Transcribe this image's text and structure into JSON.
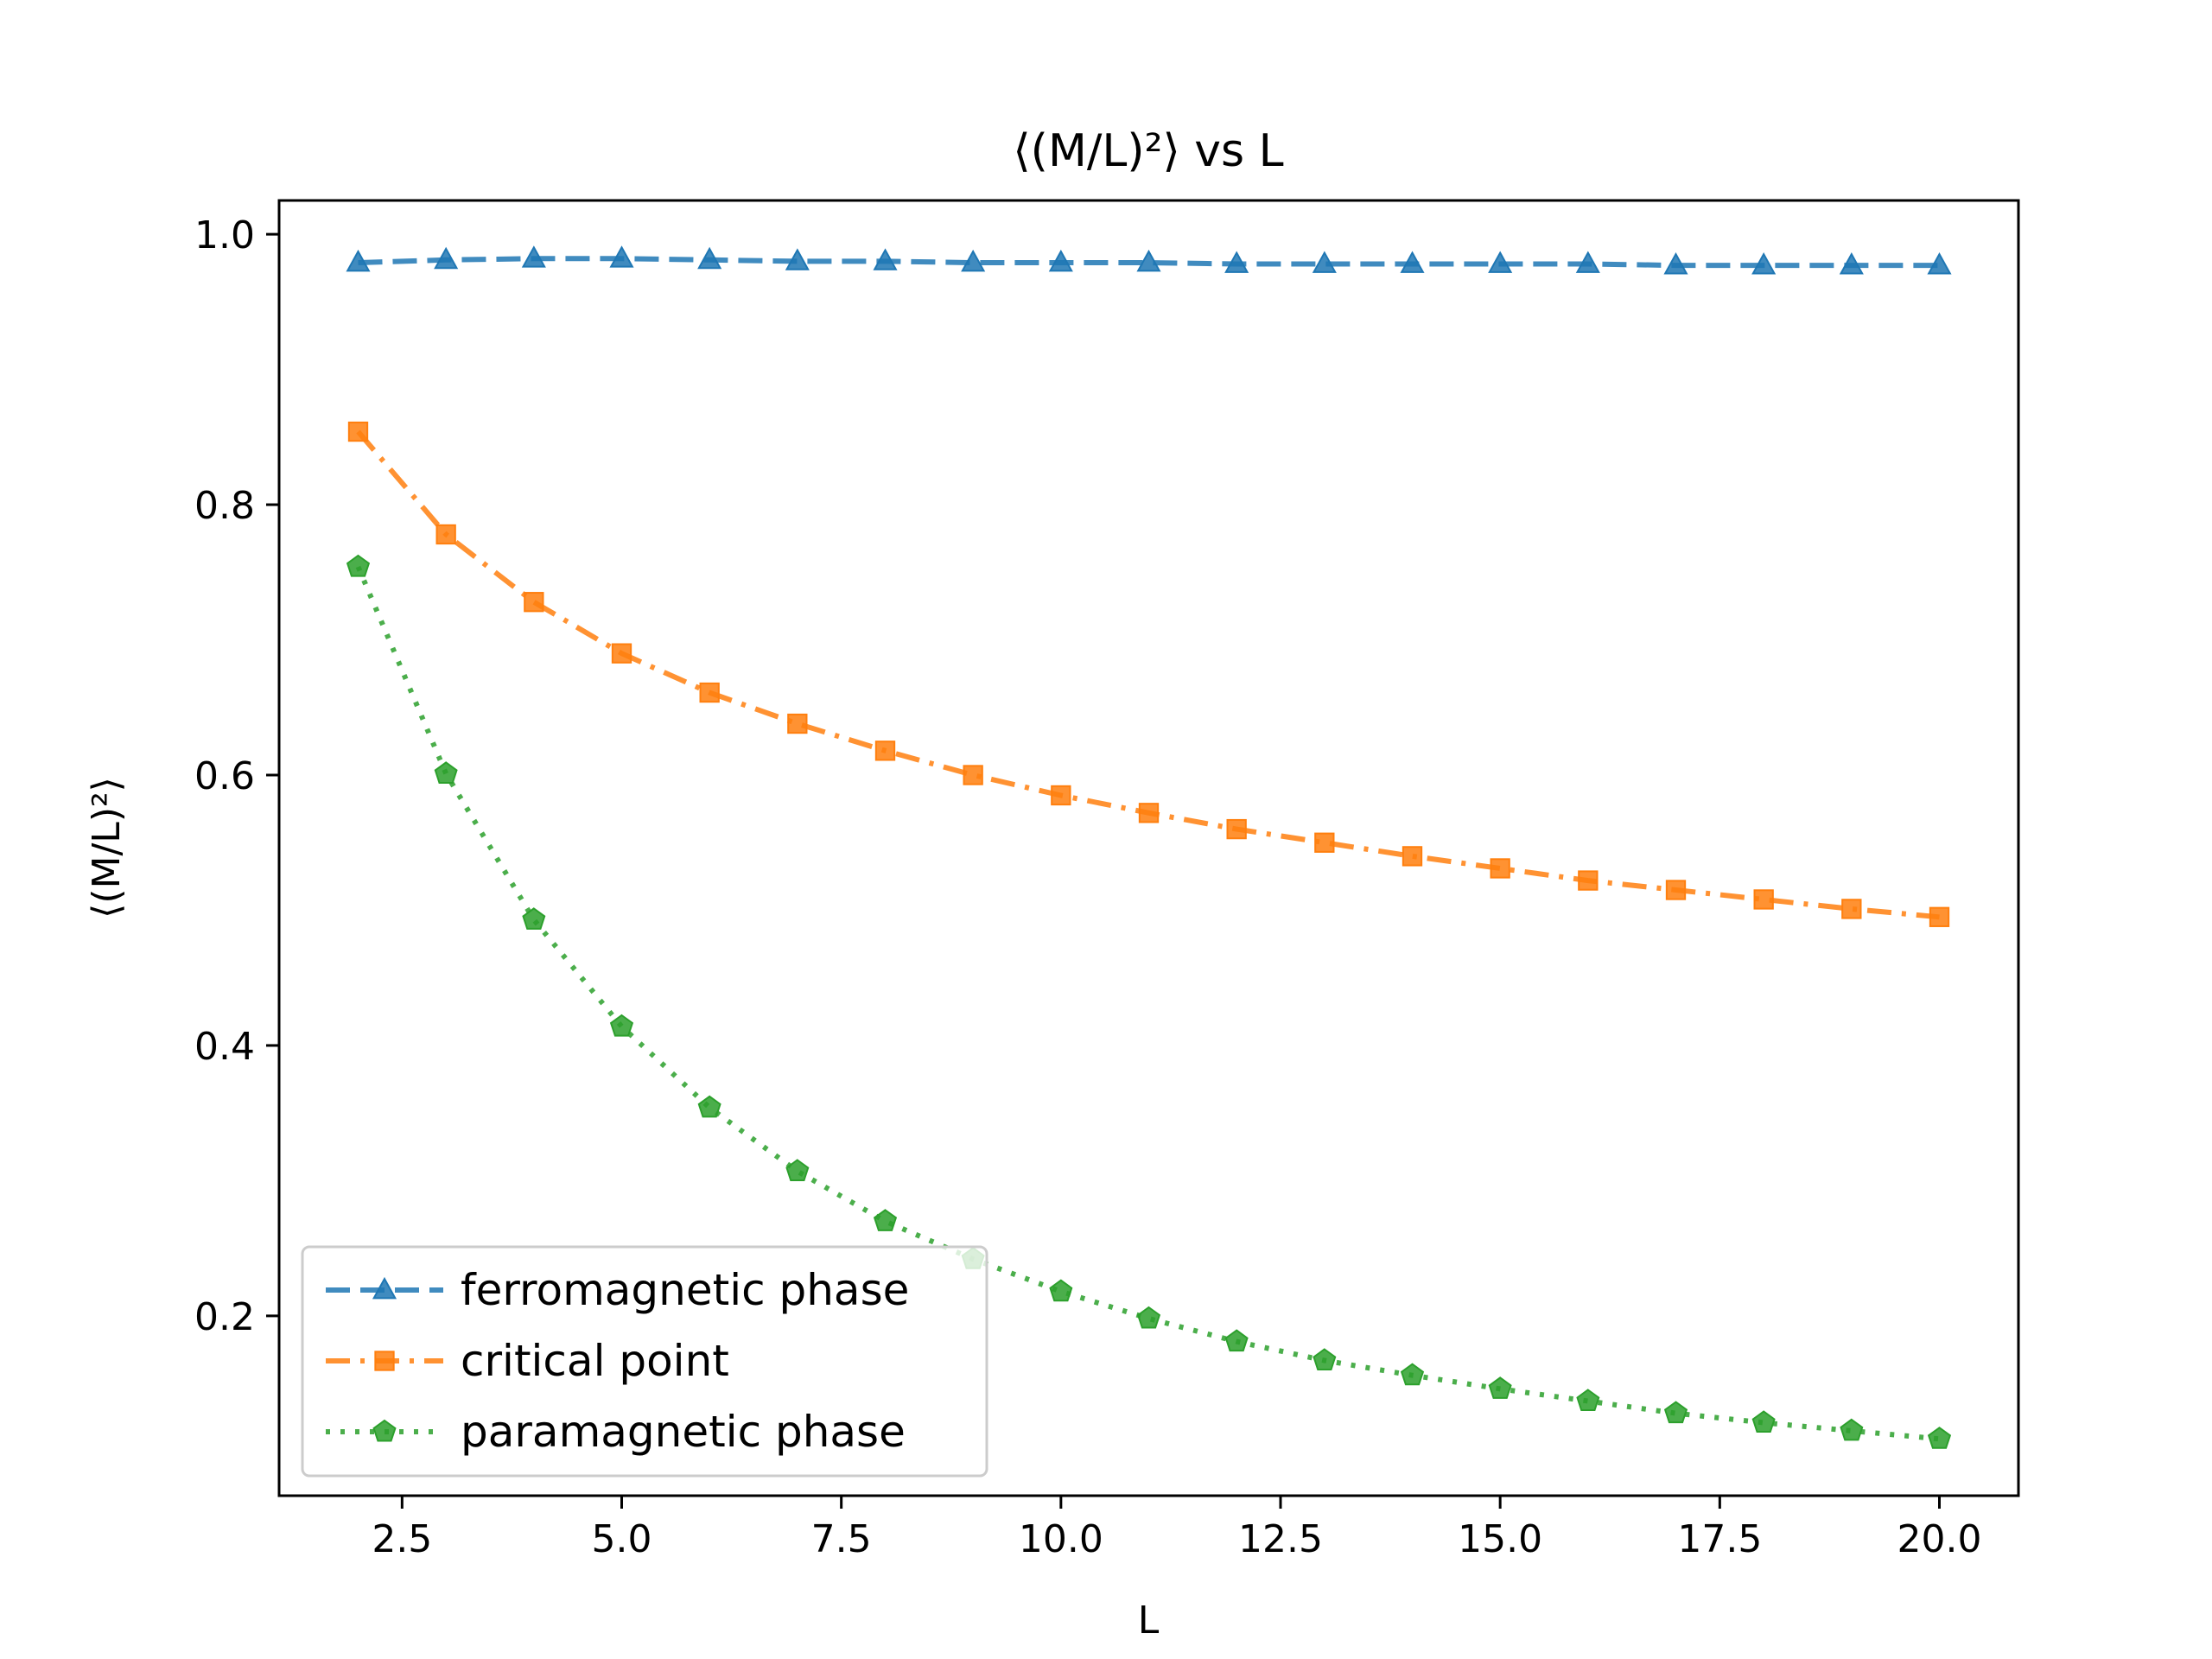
{
  "chart_data": {
    "type": "line",
    "title": "⟨(M/L)²⟩ vs L",
    "xlabel": "L",
    "ylabel": "⟨(M/L)²⟩",
    "xlim": [
      1.1,
      20.9
    ],
    "ylim": [
      0.067,
      1.025
    ],
    "x_ticks": [
      2.5,
      5.0,
      7.5,
      10.0,
      12.5,
      15.0,
      17.5,
      20.0
    ],
    "x_tick_labels": [
      "2.5",
      "5.0",
      "7.5",
      "10.0",
      "12.5",
      "15.0",
      "17.5",
      "20.0"
    ],
    "y_ticks": [
      0.2,
      0.4,
      0.6,
      0.8,
      1.0
    ],
    "y_tick_labels": [
      "0.2",
      "0.4",
      "0.6",
      "0.8",
      "1.0"
    ],
    "grid": false,
    "legend_position": "lower-left",
    "x": [
      2,
      3,
      4,
      5,
      6,
      7,
      8,
      9,
      10,
      11,
      12,
      13,
      14,
      15,
      16,
      17,
      18,
      19,
      20
    ],
    "series": [
      {
        "name": "ferromagnetic phase",
        "color": "#1f77b4",
        "line_style": "dashed",
        "marker": "triangle",
        "values": [
          0.979,
          0.981,
          0.982,
          0.982,
          0.981,
          0.98,
          0.98,
          0.979,
          0.979,
          0.979,
          0.978,
          0.978,
          0.978,
          0.978,
          0.978,
          0.977,
          0.977,
          0.977,
          0.977
        ]
      },
      {
        "name": "critical point",
        "color": "#ff7f0e",
        "line_style": "dashdot",
        "marker": "square",
        "values": [
          0.854,
          0.778,
          0.728,
          0.69,
          0.661,
          0.638,
          0.618,
          0.6,
          0.585,
          0.572,
          0.56,
          0.55,
          0.54,
          0.531,
          0.522,
          0.515,
          0.508,
          0.501,
          0.495
        ]
      },
      {
        "name": "paramagnetic phase",
        "color": "#2ca02c",
        "line_style": "dotted",
        "marker": "pentagon",
        "values": [
          0.754,
          0.601,
          0.493,
          0.414,
          0.354,
          0.307,
          0.27,
          0.242,
          0.218,
          0.198,
          0.181,
          0.167,
          0.156,
          0.146,
          0.137,
          0.128,
          0.121,
          0.115,
          0.109
        ]
      }
    ]
  }
}
